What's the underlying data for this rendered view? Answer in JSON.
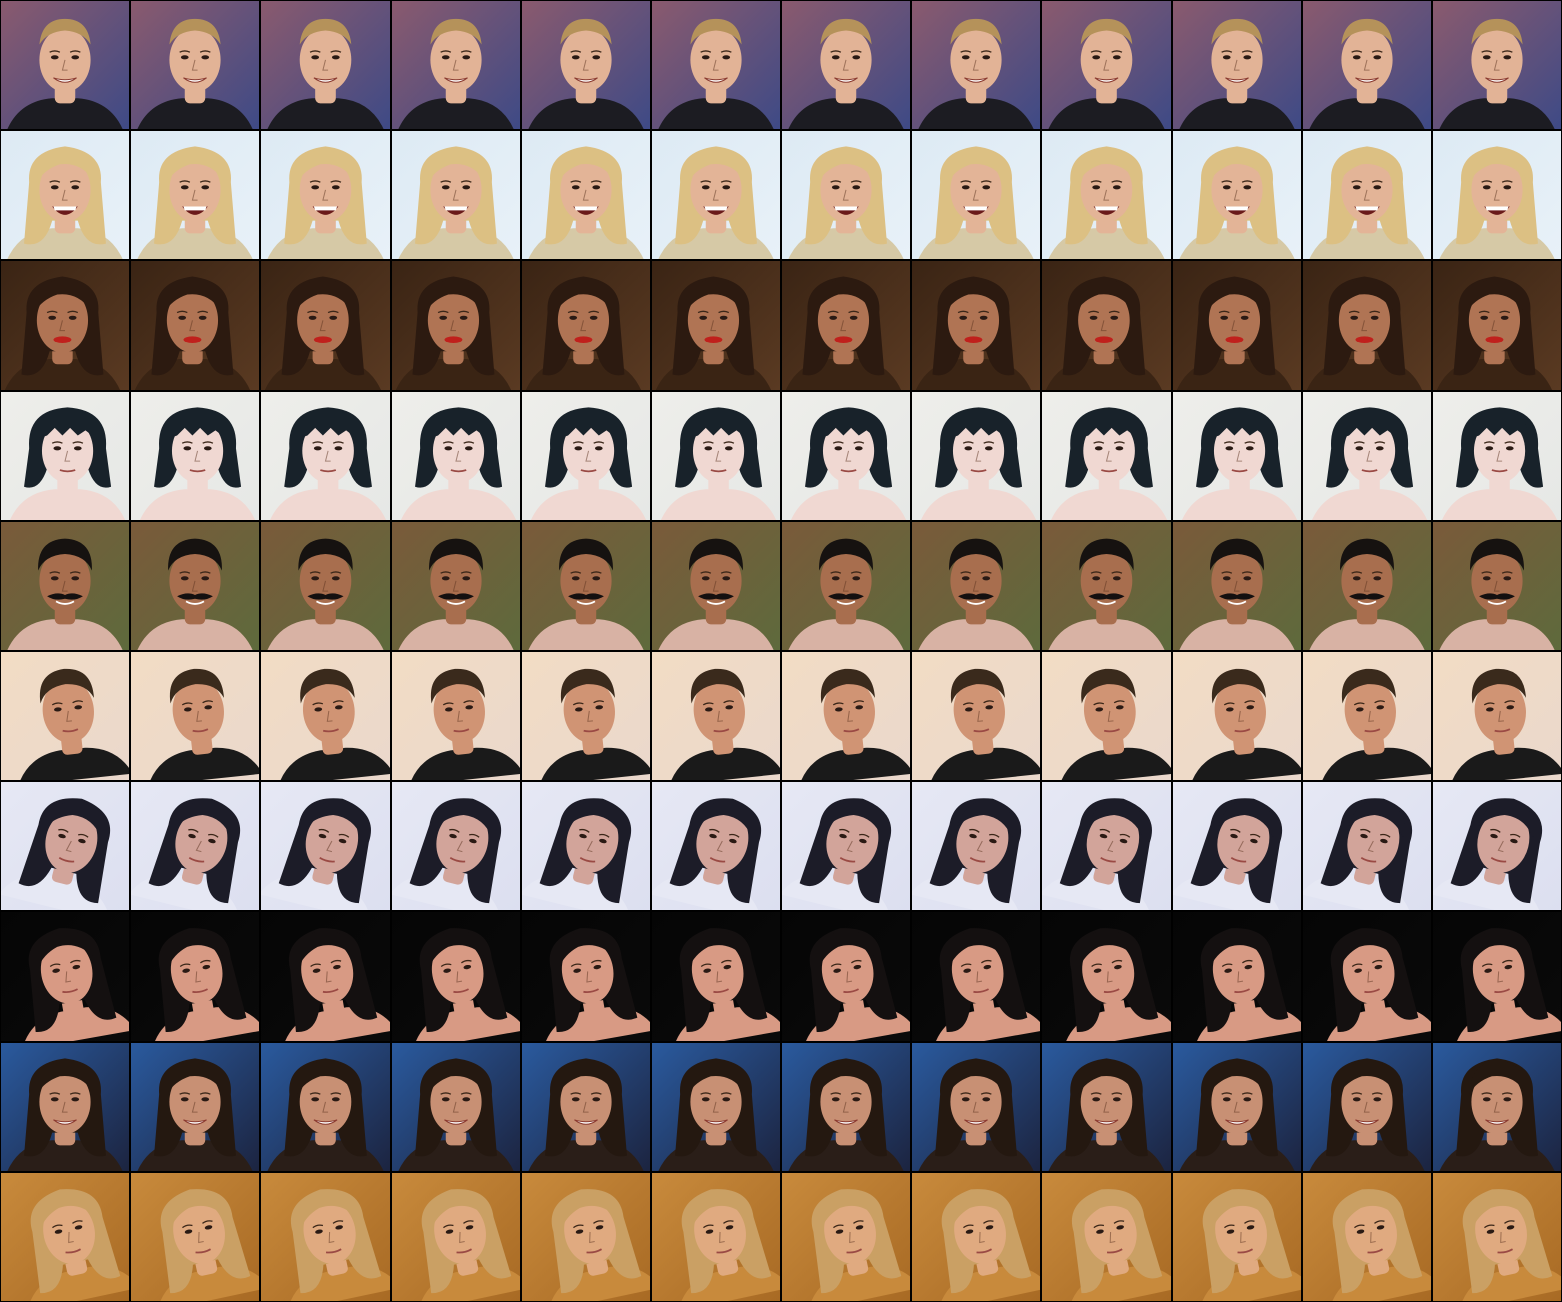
{
  "grid": {
    "rows": 10,
    "columns": 12,
    "border_color": "#000000"
  },
  "rows": [
    {
      "subject": "blonde-woman-smiling-ponytail",
      "bg": [
        "#8a5a6e",
        "#3e4a86"
      ],
      "hair": "#b5925a",
      "skin": "#e2b396",
      "shirt": "#1c1c22",
      "hair_style": "pulled-back",
      "tilt": 0,
      "shift": 0.0,
      "mouth": "smile"
    },
    {
      "subject": "blonde-woman-laughing-earrings",
      "bg": [
        "#ddeaf4",
        "#e8f1f8"
      ],
      "hair": "#dcc083",
      "skin": "#e3b497",
      "shirt": "#d6c9a6",
      "hair_style": "long",
      "tilt": 0,
      "shift": 0.0,
      "mouth": "open"
    },
    {
      "subject": "dark-curly-hair-woman-red-lips",
      "bg": [
        "#3a2414",
        "#5a3a22"
      ],
      "hair": "#2c1a10",
      "skin": "#b07454",
      "shirt": "#3a2414",
      "hair_style": "curly",
      "tilt": 0,
      "shift": -0.02,
      "mouth": "lips"
    },
    {
      "subject": "black-bob-woman-looking-up",
      "bg": [
        "#eeeeea",
        "#e6e8e6"
      ],
      "hair": "#18222a",
      "skin": "#f0d8d2",
      "shirt": "#f0d8d2",
      "hair_style": "bob",
      "tilt": 0,
      "shift": 0.02,
      "mouth": "small"
    },
    {
      "subject": "man-mustache-smiling",
      "bg": [
        "#7a5a3a",
        "#5e6a3c"
      ],
      "hair": "#161210",
      "skin": "#a86e4e",
      "shirt": "#d8b2a4",
      "hair_style": "short",
      "tilt": 0,
      "shift": 0.0,
      "mouth": "mustache"
    },
    {
      "subject": "man-slicked-hair-looking-down",
      "bg": [
        "#f2dcc4",
        "#ead8cc"
      ],
      "hair": "#3a2a1c",
      "skin": "#d09474",
      "shirt": "#1a1a1a",
      "hair_style": "short",
      "tilt": -6,
      "shift": 0.03,
      "mouth": "small"
    },
    {
      "subject": "long-dark-hair-head-tilted",
      "bg": [
        "#e6e8f4",
        "#dcdff0"
      ],
      "hair": "#1c1c28",
      "skin": "#d2a49a",
      "shirt": "#e6e8f4",
      "hair_style": "messy",
      "tilt": 14,
      "shift": 0.04,
      "mouth": "small"
    },
    {
      "subject": "dark-hair-woman-hand-in-hair",
      "bg": [
        "#050505",
        "#0a0a0a"
      ],
      "hair": "#141010",
      "skin": "#d89a84",
      "shirt": "#d89a84",
      "hair_style": "long",
      "tilt": -10,
      "shift": 0.02,
      "mouth": "small"
    },
    {
      "subject": "brunette-woman-smiling-blue-backdrop",
      "bg": [
        "#2a5a9e",
        "#1c2440"
      ],
      "hair": "#241810",
      "skin": "#c89074",
      "shirt": "#2a1e18",
      "hair_style": "long",
      "tilt": 0,
      "shift": 0.0,
      "mouth": "smile"
    },
    {
      "subject": "blonde-woman-golden-backdrop",
      "bg": [
        "#c88a3c",
        "#a86a24"
      ],
      "hair": "#caa064",
      "skin": "#e0aa80",
      "shirt": "#c88a3c",
      "hair_style": "long",
      "tilt": -12,
      "shift": 0.04,
      "mouth": "small"
    }
  ]
}
